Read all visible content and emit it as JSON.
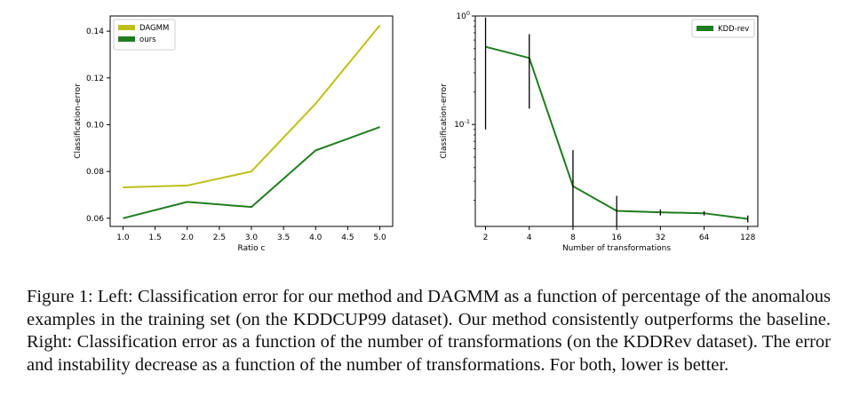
{
  "chart_data": [
    {
      "type": "line",
      "title": "",
      "xlabel": "Ratio c",
      "ylabel": "Classification-error",
      "x": [
        1.0,
        2.0,
        3.0,
        4.0,
        5.0
      ],
      "xlim": [
        0.8,
        5.2
      ],
      "ylim": [
        0.0565,
        0.1465
      ],
      "xticks": [
        "1.0",
        "1.5",
        "2.0",
        "2.5",
        "3.0",
        "3.5",
        "4.0",
        "4.5",
        "5.0"
      ],
      "xtick_values": [
        1.0,
        1.5,
        2.0,
        2.5,
        3.0,
        3.5,
        4.0,
        4.5,
        5.0
      ],
      "yticks": [
        "0.06",
        "0.08",
        "0.10",
        "0.12",
        "0.14"
      ],
      "ytick_values": [
        0.06,
        0.08,
        0.1,
        0.12,
        0.14
      ],
      "grid": false,
      "legend": "top-left",
      "series": [
        {
          "name": "DAGMM",
          "color": "#bfbf1a",
          "values": [
            0.0732,
            0.074,
            0.08,
            0.109,
            0.1425
          ]
        },
        {
          "name": "ours",
          "color": "#1e7d1e",
          "values": [
            0.06,
            0.067,
            0.0648,
            0.089,
            0.099
          ]
        }
      ]
    },
    {
      "type": "line",
      "title": "",
      "xlabel": "Number of transformations",
      "ylabel": "Classification-error",
      "x": [
        2,
        4,
        8,
        16,
        32,
        64,
        128
      ],
      "x_scale": "log2",
      "xlim": [
        1.7,
        150
      ],
      "y_scale": "log",
      "ylim": [
        0.0115,
        1.0
      ],
      "xticks": [
        "2",
        "4",
        "8",
        "16",
        "32",
        "64",
        "128"
      ],
      "yticks": [
        "10^0",
        "10^-1"
      ],
      "ytick_values": [
        1.0,
        0.1
      ],
      "grid": false,
      "legend": "top-right",
      "series": [
        {
          "name": "KDD-rev",
          "color": "#1e7d1e",
          "values": [
            0.52,
            0.41,
            0.027,
            0.016,
            0.0155,
            0.0152,
            0.0135
          ],
          "error_low": [
            0.09,
            0.14,
            0.0115,
            0.0115,
            0.0145,
            0.0145,
            0.0125
          ],
          "error_high": [
            0.97,
            0.68,
            0.058,
            0.022,
            0.0165,
            0.0159,
            0.0145
          ]
        }
      ]
    }
  ],
  "caption": "Figure 1: Left: Classification error for our method and DAGMM as a function of percentage of the anomalous examples in the training set (on the KDDCUP99 dataset). Our method consistently outperforms the baseline. Right: Classification error as a function of the number of transformations (on the KDDRev dataset). The error and instability decrease as a function of the number of transformations. For both, lower is better."
}
